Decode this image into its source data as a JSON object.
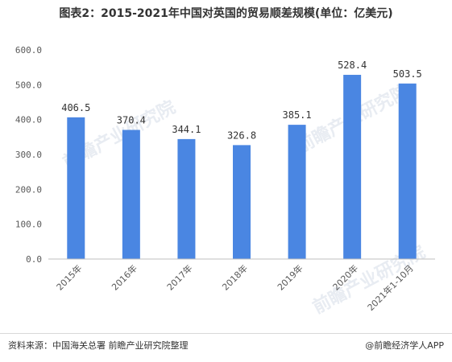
{
  "title": "图表2：2015-2021年中国对英国的贸易顺差规模(单位：亿美元)",
  "footer": {
    "source": "资料来源：中国海关总署 前瞻产业研究院整理",
    "brand": "@前瞻经济学人APP"
  },
  "watermark": "前瞻产业研究院",
  "colors": {
    "bar": "#4a86e2",
    "axis": "#bfbfbf",
    "grid": "#e6e6e6",
    "text": "#595959"
  },
  "chart_data": {
    "type": "bar",
    "categories": [
      "2015年",
      "2016年",
      "2017年",
      "2018年",
      "2019年",
      "2020年",
      "2021年1-10月"
    ],
    "values": [
      406.5,
      370.4,
      344.1,
      326.8,
      385.1,
      528.4,
      503.5
    ],
    "value_labels": [
      "406.5",
      "370.4",
      "344.1",
      "326.8",
      "385.1",
      "528.4",
      "503.5"
    ],
    "yticks": [
      "0.0",
      "100.0",
      "200.0",
      "300.0",
      "400.0",
      "500.0",
      "600.0"
    ],
    "ylim": [
      0,
      600
    ],
    "grid": false,
    "legend": "none"
  }
}
